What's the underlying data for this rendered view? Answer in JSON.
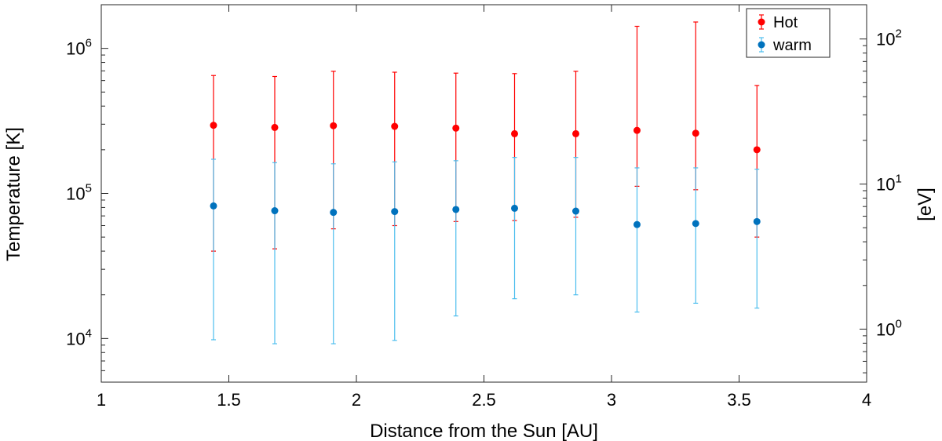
{
  "chart_data": {
    "type": "scatter",
    "xlabel": "Distance from the Sun [AU]",
    "ylabel": "Temperature [K]",
    "y2label": "[eV]",
    "xlim": [
      1,
      4
    ],
    "ylim": [
      5000,
      2000000
    ],
    "yscale": "log",
    "y2lim_eV": [
      0.431,
      172.3
    ],
    "xticks": [
      1,
      1.5,
      2,
      2.5,
      3,
      3.5,
      4
    ],
    "xtick_labels": [
      "1",
      "1.5",
      "2",
      "2.5",
      "3",
      "3.5",
      "4"
    ],
    "yticks": [
      {
        "value": 10000,
        "base": "10",
        "exp": "4"
      },
      {
        "value": 100000,
        "base": "10",
        "exp": "5"
      },
      {
        "value": 1000000,
        "base": "10",
        "exp": "6"
      }
    ],
    "y2ticks": [
      {
        "value": 1,
        "base": "10",
        "exp": "0"
      },
      {
        "value": 10,
        "base": "10",
        "exp": "1"
      },
      {
        "value": 100,
        "base": "10",
        "exp": "2"
      }
    ],
    "legend_position": "top-right",
    "series": [
      {
        "name": "Hot",
        "color": "#ff0000",
        "points": [
          {
            "x": 1.44,
            "y": 295000,
            "low": 40000,
            "high": 650000
          },
          {
            "x": 1.68,
            "y": 285000,
            "low": 41500,
            "high": 640000
          },
          {
            "x": 1.91,
            "y": 293000,
            "low": 57000,
            "high": 695000
          },
          {
            "x": 2.15,
            "y": 290000,
            "low": 60000,
            "high": 685000
          },
          {
            "x": 2.39,
            "y": 282000,
            "low": 64000,
            "high": 675000
          },
          {
            "x": 2.62,
            "y": 258000,
            "low": 65000,
            "high": 670000
          },
          {
            "x": 2.86,
            "y": 258000,
            "low": 68500,
            "high": 695000
          },
          {
            "x": 3.1,
            "y": 272000,
            "low": 112000,
            "high": 1420000
          },
          {
            "x": 3.33,
            "y": 260000,
            "low": 106000,
            "high": 1520000
          },
          {
            "x": 3.57,
            "y": 200000,
            "low": 50000,
            "high": 555000
          }
        ]
      },
      {
        "name": "warm",
        "color": "#0072bd",
        "errcolor": "#4dbeee",
        "points": [
          {
            "x": 1.44,
            "y": 82000,
            "low": 9800,
            "high": 172000
          },
          {
            "x": 1.68,
            "y": 76000,
            "low": 9200,
            "high": 163000
          },
          {
            "x": 1.91,
            "y": 74000,
            "low": 9200,
            "high": 160000
          },
          {
            "x": 2.15,
            "y": 75000,
            "low": 9700,
            "high": 165000
          },
          {
            "x": 2.39,
            "y": 77500,
            "low": 14300,
            "high": 168000
          },
          {
            "x": 2.62,
            "y": 79000,
            "low": 18800,
            "high": 177000
          },
          {
            "x": 2.86,
            "y": 75500,
            "low": 20000,
            "high": 177000
          },
          {
            "x": 3.1,
            "y": 61000,
            "low": 15200,
            "high": 150000
          },
          {
            "x": 3.33,
            "y": 62000,
            "low": 17500,
            "high": 150000
          },
          {
            "x": 3.57,
            "y": 64000,
            "low": 16200,
            "high": 147000
          }
        ]
      }
    ]
  }
}
